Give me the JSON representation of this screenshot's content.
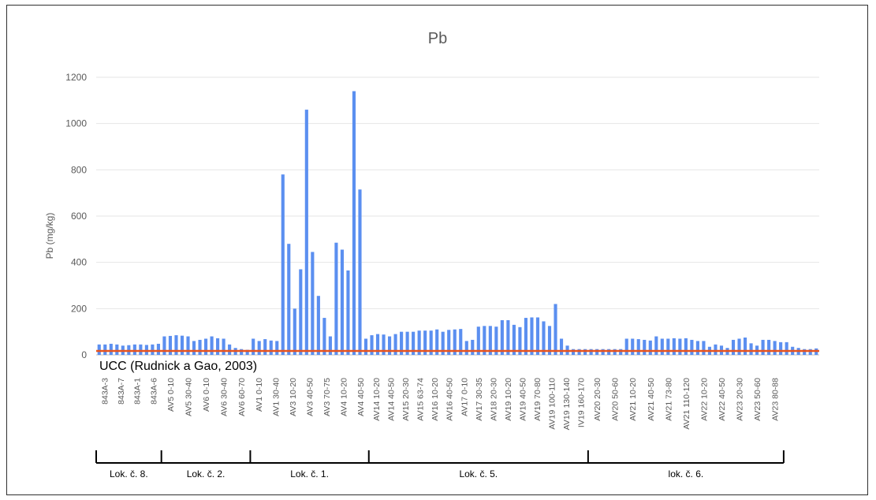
{
  "chart_data": {
    "type": "bar",
    "title": "Pb",
    "ylabel": "Pb (mg/kg)",
    "xlabel": "",
    "ylim": [
      0,
      1200
    ],
    "yticks": [
      0,
      200,
      400,
      600,
      800,
      1000,
      1200
    ],
    "grid": true,
    "bar_color": "#5b8ff0",
    "reference_line": {
      "label": "UCC (Rudnick a Gao, 2003)",
      "value": 17,
      "color": "#e8531d"
    },
    "tick_labels": [
      "843A-3",
      "843A-7",
      "843A-1",
      "843A-6",
      "AV5 0-10",
      "AV5 30-40",
      "AV6 0-10",
      "AV6 30-40",
      "AV6 60-70",
      "AV1 0-10",
      "AV1 30-40",
      "AV3 10-20",
      "AV3 40-50",
      "AV3 70-75",
      "AV4 10-20",
      "AV4 40-50",
      "AV14 10-20",
      "AV14 40-50",
      "AV15 20-30",
      "AV15 63-74",
      "AV16 10-20",
      "AV16 40-50",
      "AV17 0-10",
      "AV17 30-35",
      "AV18 20-30",
      "AV19 10-20",
      "AV19 40-50",
      "AV19 70-80",
      "AV19 100-110",
      "AV19 130-140",
      "IV19 160-170",
      "AV20 20-30",
      "AV20 50-60",
      "AV21 10-20",
      "AV21 40-50",
      "AV21 73-80",
      "AV21 110-120",
      "AV22 10-20",
      "AV22 40-50",
      "AV23 20-30",
      "AV23 50-60",
      "AV23 80-88"
    ],
    "values": [
      45,
      45,
      48,
      45,
      40,
      42,
      45,
      45,
      43,
      45,
      48,
      80,
      82,
      85,
      83,
      80,
      60,
      65,
      70,
      80,
      72,
      70,
      45,
      30,
      25,
      22,
      70,
      60,
      68,
      62,
      60,
      780,
      480,
      200,
      370,
      1060,
      445,
      255,
      160,
      80,
      485,
      455,
      365,
      1140,
      715,
      70,
      85,
      90,
      88,
      80,
      90,
      100,
      100,
      100,
      105,
      105,
      105,
      110,
      100,
      108,
      110,
      112,
      60,
      65,
      122,
      125,
      125,
      122,
      150,
      150,
      130,
      120,
      160,
      162,
      162,
      145,
      125,
      220,
      70,
      40,
      25,
      25,
      25,
      25,
      25,
      25,
      25,
      25,
      25,
      70,
      70,
      68,
      65,
      62,
      80,
      70,
      70,
      72,
      70,
      72,
      65,
      60,
      60,
      35,
      45,
      40,
      30,
      65,
      70,
      75,
      50,
      40,
      65,
      65,
      60,
      55,
      55,
      35,
      30,
      25,
      25,
      28
    ],
    "groups": [
      {
        "label": "Lok. č. 8.",
        "count": 11
      },
      {
        "label": "Lok. č. 2.",
        "count": 15
      },
      {
        "label": "Lok. č. 1.",
        "count": 20
      },
      {
        "label": "Lok. č. 5.",
        "count": 37
      },
      {
        "label": "lok. č. 6.",
        "count": 33
      }
    ]
  }
}
